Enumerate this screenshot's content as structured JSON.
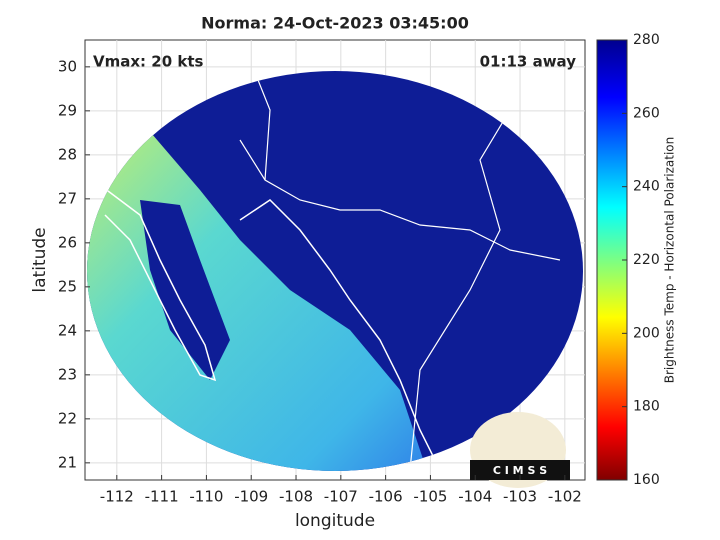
{
  "map": {
    "title": "Norma: 24-Oct-2023 03:45:00",
    "annotations": {
      "left": "Vmax: 20 kts",
      "right": "01:13 away"
    },
    "xlabel": "longitude",
    "ylabel": "latitude",
    "xlim": [
      -112.71,
      -101.55
    ],
    "ylim": [
      20.61,
      30.61
    ],
    "xticks": [
      -112,
      -111,
      -110,
      -109,
      -108,
      -107,
      -106,
      -105,
      -104,
      -103,
      -102
    ],
    "yticks": [
      21,
      22,
      23,
      24,
      25,
      26,
      27,
      28,
      29,
      30
    ],
    "colorbar": {
      "label": "Brightness Temp - Horizontal Polarization",
      "lim": [
        160,
        280
      ],
      "ticks": [
        160,
        180,
        200,
        220,
        240,
        260,
        280
      ]
    },
    "logo": "C I M S S"
  }
}
